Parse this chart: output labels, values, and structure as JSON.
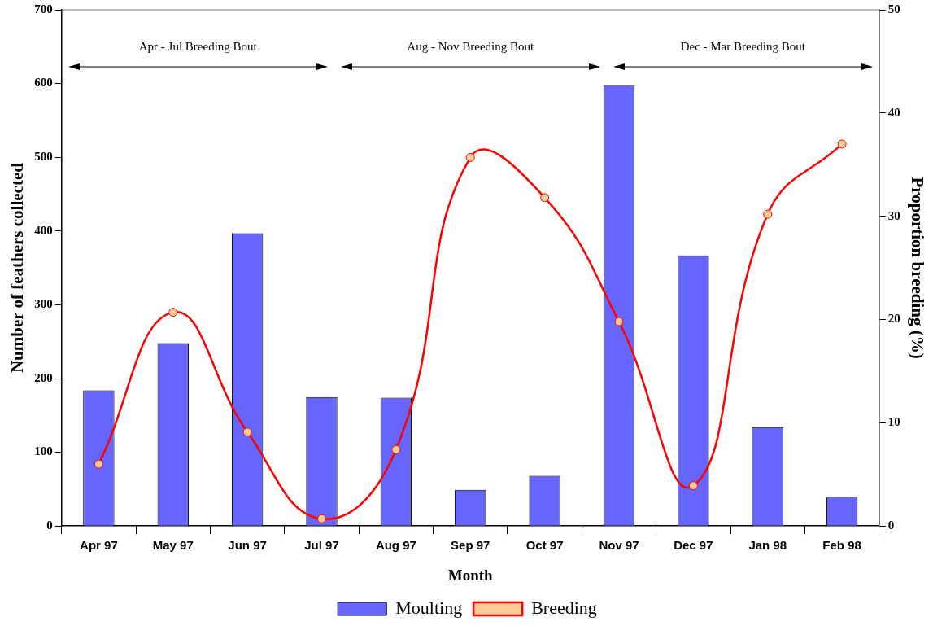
{
  "chart_data": {
    "type": "bar",
    "xlabel": "Month",
    "ylabel": "Number of feathers collected",
    "y2label": "Proportion breeding (%)",
    "categories": [
      "Apr 97",
      "May 97",
      "Jun 97",
      "Jul 97",
      "Aug 97",
      "Sep 97",
      "Oct 97",
      "Nov 97",
      "Dec 97",
      "Jan 98",
      "Feb 98"
    ],
    "series": [
      {
        "name": "Moulting",
        "color": "#6666ff",
        "values": [
          184,
          248,
          397,
          175,
          174,
          49,
          68,
          598,
          367,
          134,
          40
        ]
      },
      {
        "name": "Breeding",
        "type": "line",
        "axis": "y2",
        "color": "#ff0000",
        "values": [
          6.0,
          20.7,
          9.1,
          0.7,
          7.4,
          35.7,
          31.8,
          19.8,
          3.9,
          30.2,
          37.0
        ]
      }
    ],
    "ylim": [
      0,
      700
    ],
    "yticks": [
      0,
      100,
      200,
      300,
      400,
      500,
      600,
      700
    ],
    "y2lim": [
      0,
      50
    ],
    "y2ticks": [
      0,
      10,
      20,
      30,
      40,
      50
    ],
    "annotations": [
      "Apr - Jul Breeding Bout",
      "Aug - Nov Breeding Bout",
      "Dec - Mar Breeding Bout"
    ],
    "grid": false,
    "legend": "bottom",
    "marker": "circle"
  }
}
